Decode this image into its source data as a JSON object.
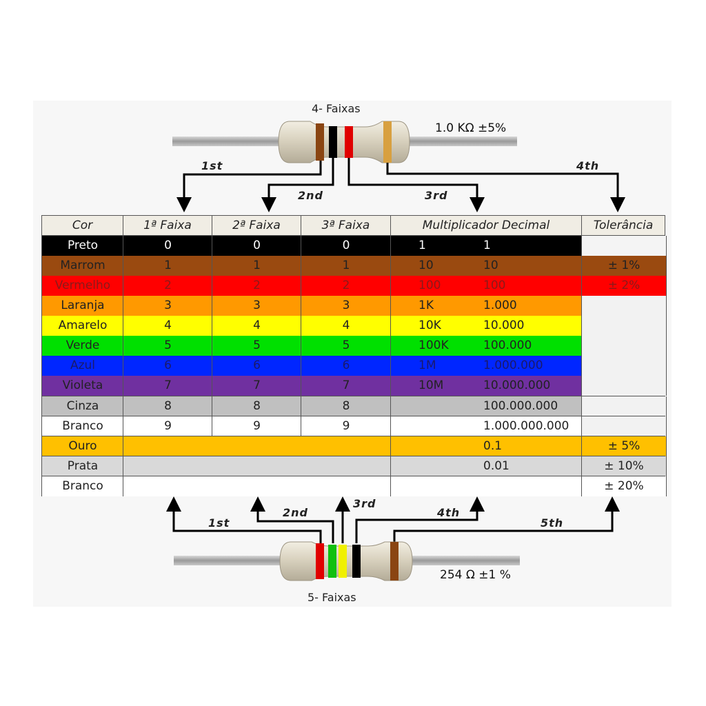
{
  "top_resistor": {
    "title": "4- Faixas",
    "value": "1.0 KΩ  ±5%"
  },
  "bottom_resistor": {
    "title": "5- Faixas",
    "value": "254 Ω  ±1 %"
  },
  "top_labels": {
    "first": "1st",
    "second": "2nd",
    "third": "3rd",
    "fourth": "4th"
  },
  "bottom_labels": {
    "first": "1st",
    "second": "2nd",
    "third": "3rd",
    "fourth": "4th",
    "fifth": "5th"
  },
  "table": {
    "headers": [
      "Cor",
      "1ª Faixa",
      "2ª Faixa",
      "3ª Faixa",
      "Multiplicador Decimal",
      "Tolerância"
    ],
    "rows": [
      {
        "cor": "Preto",
        "f1": "0",
        "f2": "0",
        "f3": "0",
        "mult": "1",
        "dec": "1",
        "tol": "",
        "bg": "#000000",
        "fg": "#ffffff"
      },
      {
        "cor": "Marrom",
        "f1": "1",
        "f2": "1",
        "f3": "1",
        "mult": "10",
        "dec": "10",
        "tol": "± 1%",
        "bg": "#9a4a10",
        "fg": "#222222"
      },
      {
        "cor": "Vermelho",
        "f1": "2",
        "f2": "2",
        "f3": "2",
        "mult": "100",
        "dec": "100",
        "tol": "± 2%",
        "bg": "#ff0000",
        "fg": "#8a1a1a"
      },
      {
        "cor": "Laranja",
        "f1": "3",
        "f2": "3",
        "f3": "3",
        "mult": "1K",
        "dec": "1.000",
        "tol": "",
        "bg": "#ff9900",
        "fg": "#222222"
      },
      {
        "cor": "Amarelo",
        "f1": "4",
        "f2": "4",
        "f3": "4",
        "mult": "10K",
        "dec": "10.000",
        "tol": "",
        "bg": "#ffff00",
        "fg": "#222222"
      },
      {
        "cor": "Verde",
        "f1": "5",
        "f2": "5",
        "f3": "5",
        "mult": "100K",
        "dec": "100.000",
        "tol": "",
        "bg": "#00e000",
        "fg": "#222222"
      },
      {
        "cor": "Azul",
        "f1": "6",
        "f2": "6",
        "f3": "6",
        "mult": "1M",
        "dec": "1.000.000",
        "tol": "",
        "bg": "#0026ff",
        "fg": "#1a1a6a"
      },
      {
        "cor": "Violeta",
        "f1": "7",
        "f2": "7",
        "f3": "7",
        "mult": "10M",
        "dec": "10.000.000",
        "tol": "",
        "bg": "#7030a0",
        "fg": "#222222"
      },
      {
        "cor": "Cinza",
        "f1": "8",
        "f2": "8",
        "f3": "8",
        "mult": "",
        "dec": "100.000.000",
        "tol": "",
        "bg": "#c0c0c0",
        "fg": "#222222"
      },
      {
        "cor": "Branco",
        "f1": "9",
        "f2": "9",
        "f3": "9",
        "mult": "",
        "dec": "1.000.000.000",
        "tol": "",
        "bg": "#ffffff",
        "fg": "#222222"
      },
      {
        "cor": "Ouro",
        "f1": "",
        "f2": "",
        "f3": "",
        "mult": "",
        "dec": "0.1",
        "tol": "± 5%",
        "bg": "#ffc000",
        "fg": "#222222"
      },
      {
        "cor": "Prata",
        "f1": "",
        "f2": "",
        "f3": "",
        "mult": "",
        "dec": "0.01",
        "tol": "± 10%",
        "bg": "#d9d9d9",
        "fg": "#222222"
      },
      {
        "cor": "Branco",
        "f1": "",
        "f2": "",
        "f3": "",
        "mult": "",
        "dec": "",
        "tol": "± 20%",
        "bg": "#ffffff",
        "fg": "#222222"
      }
    ]
  }
}
